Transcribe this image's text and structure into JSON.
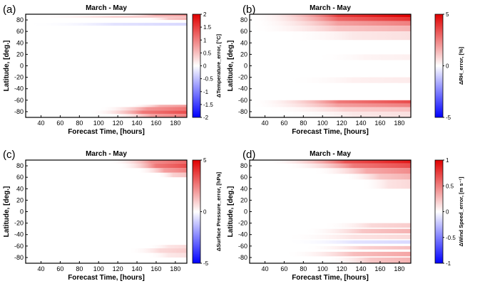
{
  "chart_data": [
    {
      "type": "heatmap",
      "panel": "(a)",
      "title": "March - May",
      "xlabel": "Forecast Time, [hours]",
      "ylabel": "Latitude, [deg.]",
      "colorbar_label": "ΔTemperature_error, [°C]",
      "xlim": [
        24,
        192
      ],
      "ylim": [
        -90,
        90
      ],
      "xticks": [
        40,
        60,
        80,
        100,
        120,
        140,
        160,
        180
      ],
      "yticks": [
        80,
        60,
        40,
        20,
        0,
        -20,
        -40,
        -60,
        -80
      ],
      "clim": [
        -2,
        2
      ],
      "cbar_ticks": [
        "2",
        "1.5",
        "1",
        "0.5",
        "0",
        "-0.5",
        "-1",
        "-1.5",
        "-2"
      ],
      "bands": [
        {
          "lat_top": 90,
          "lat_bottom": 87,
          "x_start": 120,
          "max_value": 0.9
        },
        {
          "lat_top": 87,
          "lat_bottom": 84,
          "x_start": 24,
          "max_value": 0.5
        },
        {
          "lat_top": 84,
          "lat_bottom": 80,
          "x_start": 150,
          "max_value": 0.6
        },
        {
          "lat_top": 75,
          "lat_bottom": 70,
          "x_start": 24,
          "max_value": -0.3
        },
        {
          "lat_top": -68,
          "lat_bottom": -72,
          "x_start": 130,
          "max_value": 0.8
        },
        {
          "lat_top": -72,
          "lat_bottom": -78,
          "x_start": 100,
          "max_value": 1.1
        },
        {
          "lat_top": -78,
          "lat_bottom": -84,
          "x_start": 90,
          "max_value": 1.4
        },
        {
          "lat_top": -84,
          "lat_bottom": -90,
          "x_start": 110,
          "max_value": 1.0
        }
      ]
    },
    {
      "type": "heatmap",
      "panel": "(b)",
      "title": "March - May",
      "xlabel": "Forecast Time, [hours]",
      "ylabel": "Latitude, [deg.]",
      "colorbar_label": "ΔRH_error, [%]",
      "xlim": [
        24,
        192
      ],
      "ylim": [
        -90,
        90
      ],
      "xticks": [
        40,
        60,
        80,
        100,
        120,
        140,
        160,
        180
      ],
      "yticks": [
        80,
        60,
        40,
        20,
        0,
        -20,
        -40,
        -60,
        -80
      ],
      "clim": [
        -5,
        5
      ],
      "cbar_ticks": [
        "5",
        "0",
        "-5"
      ],
      "bands": [
        {
          "lat_top": 90,
          "lat_bottom": 85,
          "x_start": 24,
          "max_value": 5.0
        },
        {
          "lat_top": 85,
          "lat_bottom": 78,
          "x_start": 24,
          "max_value": 4.0
        },
        {
          "lat_top": 78,
          "lat_bottom": 70,
          "x_start": 24,
          "max_value": 2.5
        },
        {
          "lat_top": 70,
          "lat_bottom": 60,
          "x_start": 24,
          "max_value": 1.5
        },
        {
          "lat_top": 60,
          "lat_bottom": 45,
          "x_start": 60,
          "max_value": 0.6
        },
        {
          "lat_top": 20,
          "lat_bottom": 10,
          "x_start": 90,
          "max_value": 0.3
        },
        {
          "lat_top": -20,
          "lat_bottom": -30,
          "x_start": 60,
          "max_value": 0.4
        },
        {
          "lat_top": -60,
          "lat_bottom": -66,
          "x_start": 24,
          "max_value": 3.5
        },
        {
          "lat_top": -66,
          "lat_bottom": -72,
          "x_start": 24,
          "max_value": 2.5
        },
        {
          "lat_top": -72,
          "lat_bottom": -80,
          "x_start": 40,
          "max_value": 1.2
        },
        {
          "lat_top": -80,
          "lat_bottom": -90,
          "x_start": 60,
          "max_value": 0.6
        }
      ]
    },
    {
      "type": "heatmap",
      "panel": "(c)",
      "title": "March - May",
      "xlabel": "Forecast Time, [hours]",
      "ylabel": "Latitude, [deg.]",
      "colorbar_label": "ΔSurface Pressure_error, [hPa]",
      "xlim": [
        24,
        192
      ],
      "ylim": [
        -90,
        90
      ],
      "xticks": [
        40,
        60,
        80,
        100,
        120,
        140,
        160,
        180
      ],
      "yticks": [
        80,
        60,
        40,
        20,
        0,
        -20,
        -40,
        -60,
        -80
      ],
      "clim": [
        -5,
        5
      ],
      "cbar_ticks": [
        "5",
        "0",
        "-5"
      ],
      "bands": [
        {
          "lat_top": 90,
          "lat_bottom": 84,
          "x_start": 110,
          "max_value": 3.0
        },
        {
          "lat_top": 84,
          "lat_bottom": 76,
          "x_start": 120,
          "max_value": 3.5
        },
        {
          "lat_top": 76,
          "lat_bottom": 68,
          "x_start": 140,
          "max_value": 2.5
        },
        {
          "lat_top": 68,
          "lat_bottom": 60,
          "x_start": 160,
          "max_value": 1.2
        },
        {
          "lat_top": -58,
          "lat_bottom": -64,
          "x_start": 150,
          "max_value": 0.7
        },
        {
          "lat_top": -64,
          "lat_bottom": -72,
          "x_start": 130,
          "max_value": 1.0
        },
        {
          "lat_top": -72,
          "lat_bottom": -80,
          "x_start": 150,
          "max_value": 0.6
        }
      ]
    },
    {
      "type": "heatmap",
      "panel": "(d)",
      "title": "March - May",
      "xlabel": "Forecast Time, [hours]",
      "ylabel": "Latitude, [deg.]",
      "colorbar_label": "ΔWind Speed_error, [m s⁻¹]",
      "xlim": [
        24,
        192
      ],
      "ylim": [
        -90,
        90
      ],
      "xticks": [
        40,
        60,
        80,
        100,
        120,
        140,
        160,
        180
      ],
      "yticks": [
        80,
        60,
        40,
        20,
        0,
        -20,
        -40,
        -60,
        -80
      ],
      "clim": [
        -1,
        1
      ],
      "cbar_ticks": [
        "1",
        "0.5",
        "0",
        "-0.5",
        "-1"
      ],
      "bands": [
        {
          "lat_top": 90,
          "lat_bottom": 84,
          "x_start": 40,
          "max_value": 0.9
        },
        {
          "lat_top": 84,
          "lat_bottom": 76,
          "x_start": 60,
          "max_value": 0.7
        },
        {
          "lat_top": 76,
          "lat_bottom": 66,
          "x_start": 90,
          "max_value": 0.45
        },
        {
          "lat_top": 66,
          "lat_bottom": 56,
          "x_start": 120,
          "max_value": 0.3
        },
        {
          "lat_top": 56,
          "lat_bottom": 40,
          "x_start": 140,
          "max_value": 0.15
        },
        {
          "lat_top": -20,
          "lat_bottom": -28,
          "x_start": 100,
          "max_value": 0.2
        },
        {
          "lat_top": -30,
          "lat_bottom": -38,
          "x_start": 80,
          "max_value": 0.3
        },
        {
          "lat_top": -40,
          "lat_bottom": -48,
          "x_start": 60,
          "max_value": 0.15
        },
        {
          "lat_top": -50,
          "lat_bottom": -56,
          "x_start": 60,
          "max_value": -0.15
        },
        {
          "lat_top": -60,
          "lat_bottom": -66,
          "x_start": 80,
          "max_value": 0.25
        },
        {
          "lat_top": -70,
          "lat_bottom": -78,
          "x_start": 60,
          "max_value": 0.35
        },
        {
          "lat_top": -80,
          "lat_bottom": -90,
          "x_start": 100,
          "max_value": 0.3
        }
      ]
    }
  ]
}
